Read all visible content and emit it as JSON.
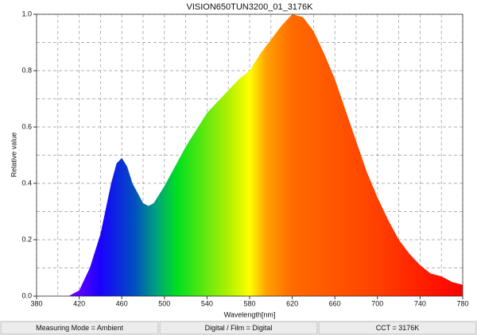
{
  "chart_data": {
    "type": "area",
    "title": "VISION650TUN3200_01_3176K",
    "x_label": "Wavelength[nm]",
    "y_label": "Relative value",
    "x": [
      410,
      420,
      430,
      440,
      450,
      455,
      460,
      465,
      470,
      480,
      485,
      490,
      500,
      510,
      520,
      530,
      540,
      550,
      560,
      570,
      580,
      590,
      600,
      610,
      620,
      630,
      640,
      650,
      660,
      670,
      680,
      690,
      700,
      710,
      720,
      730,
      740,
      750,
      760,
      770,
      780
    ],
    "values": [
      0,
      0.02,
      0.1,
      0.22,
      0.4,
      0.47,
      0.49,
      0.46,
      0.4,
      0.33,
      0.32,
      0.33,
      0.39,
      0.46,
      0.53,
      0.59,
      0.65,
      0.69,
      0.73,
      0.77,
      0.8,
      0.86,
      0.91,
      0.96,
      1.0,
      0.99,
      0.94,
      0.86,
      0.77,
      0.66,
      0.55,
      0.44,
      0.35,
      0.27,
      0.2,
      0.15,
      0.11,
      0.08,
      0.07,
      0.05,
      0.04
    ],
    "xlim": [
      380,
      780
    ],
    "ylim": [
      0,
      1
    ],
    "xticks": [
      380,
      420,
      460,
      500,
      540,
      580,
      620,
      660,
      700,
      740,
      780
    ],
    "xgrid_minor": [
      400,
      440,
      480,
      520,
      560,
      600,
      640,
      680,
      720,
      760
    ],
    "yticks": [
      {
        "value": 0,
        "label": "0.0"
      },
      0.2,
      0.4,
      0.6,
      0.8,
      {
        "value": 1,
        "label": "1.0"
      }
    ],
    "ygrid_minor": [
      0.1,
      0.3,
      0.5,
      0.7,
      0.9
    ],
    "grid": true
  },
  "status_bar": [
    "Measuring Mode = Ambient",
    "Digital / Film = Digital",
    "CCT = 3176K"
  ]
}
